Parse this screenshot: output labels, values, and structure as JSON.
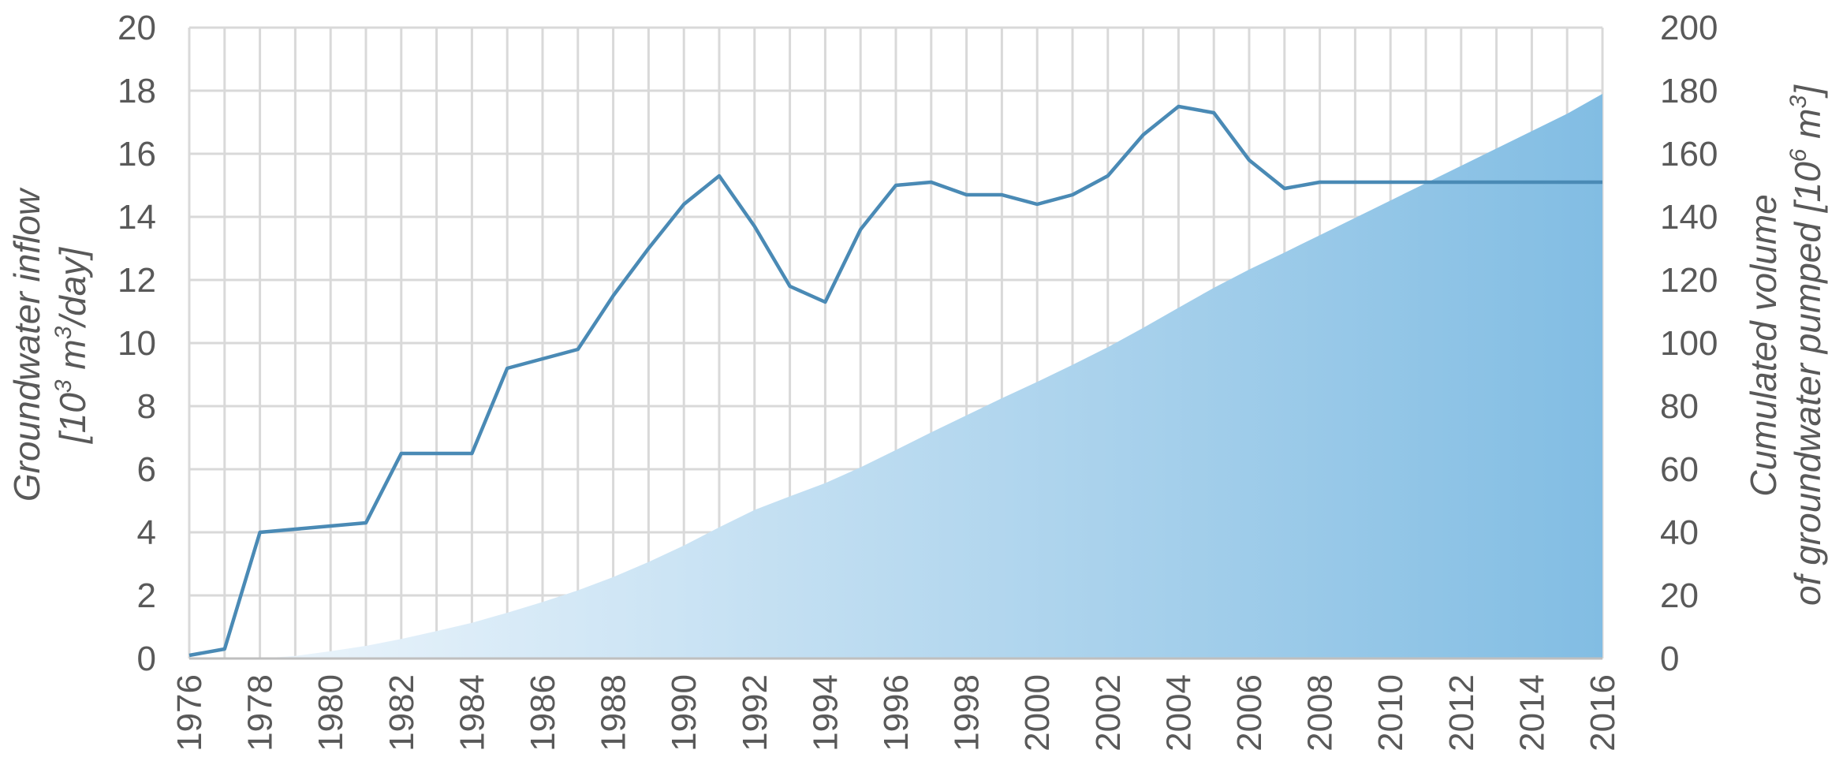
{
  "chart_data": {
    "type": "line",
    "title": "",
    "x": [
      1976,
      1977,
      1978,
      1979,
      1980,
      1981,
      1982,
      1983,
      1984,
      1985,
      1986,
      1987,
      1988,
      1989,
      1990,
      1991,
      1992,
      1993,
      1994,
      1995,
      1996,
      1997,
      1998,
      1999,
      2000,
      2001,
      2002,
      2003,
      2004,
      2005,
      2006,
      2007,
      2008,
      2009,
      2010,
      2011,
      2012,
      2013,
      2014,
      2015,
      2016
    ],
    "x_tick_labels": [
      "1976",
      "1978",
      "1980",
      "1982",
      "1984",
      "1986",
      "1988",
      "1990",
      "1992",
      "1994",
      "1996",
      "1998",
      "2000",
      "2002",
      "2004",
      "2006",
      "2008",
      "2010",
      "2012",
      "2014",
      "2016"
    ],
    "xlim": [
      1976,
      2016
    ],
    "series": [
      {
        "name": "Groundwater inflow",
        "type": "line",
        "axis": "left",
        "color": "#4a8ab5",
        "values": [
          0.1,
          0.3,
          4.0,
          4.1,
          4.2,
          4.3,
          6.5,
          6.5,
          6.5,
          9.2,
          9.5,
          9.8,
          11.5,
          13.0,
          14.4,
          15.3,
          13.7,
          11.8,
          11.3,
          13.6,
          15.0,
          15.1,
          14.7,
          14.7,
          14.4,
          14.7,
          15.3,
          16.6,
          17.5,
          17.3,
          15.8,
          14.9,
          15.1,
          15.1,
          15.1,
          15.1,
          15.1,
          15.1,
          15.1,
          15.1,
          15.1
        ]
      },
      {
        "name": "Cumulated volume of groundwater pumped",
        "type": "area",
        "axis": "right",
        "color_start": "#f2f8fd",
        "color_end": "#82bde3",
        "values": [
          0,
          0,
          0,
          0.8,
          2.3,
          4.0,
          6.2,
          8.7,
          11.3,
          14.5,
          17.9,
          21.6,
          25.8,
          30.6,
          35.8,
          41.6,
          47.1,
          51.4,
          55.6,
          60.6,
          66.1,
          71.7,
          77.1,
          82.5,
          87.7,
          93.1,
          98.7,
          104.8,
          111.2,
          117.5,
          123.3,
          128.7,
          134.2,
          139.7,
          145.2,
          150.7,
          156.2,
          161.7,
          167.2,
          172.7,
          179.0
        ]
      }
    ],
    "y_left": {
      "label_line1": "Groundwater inflow",
      "label_line2_prefix": "[10",
      "label_line2_sup1": "3",
      "label_line2_mid": " m",
      "label_line2_sup2": "3",
      "label_line2_suffix": "/day]",
      "ylim": [
        0,
        20
      ],
      "ticks": [
        "0",
        "2",
        "4",
        "6",
        "8",
        "10",
        "12",
        "14",
        "16",
        "18",
        "20"
      ]
    },
    "y_right": {
      "label_line1": "Cumulated volume",
      "label_line2_prefix": "of groundwater pumped [10",
      "label_line2_sup1": "6",
      "label_line2_mid": " m",
      "label_line2_sup2": "3",
      "label_line2_suffix": "]",
      "ylim": [
        0,
        200
      ],
      "ticks": [
        "0",
        "20",
        "40",
        "60",
        "80",
        "100",
        "120",
        "140",
        "160",
        "180",
        "200"
      ]
    },
    "grid": true,
    "legend": "none"
  }
}
